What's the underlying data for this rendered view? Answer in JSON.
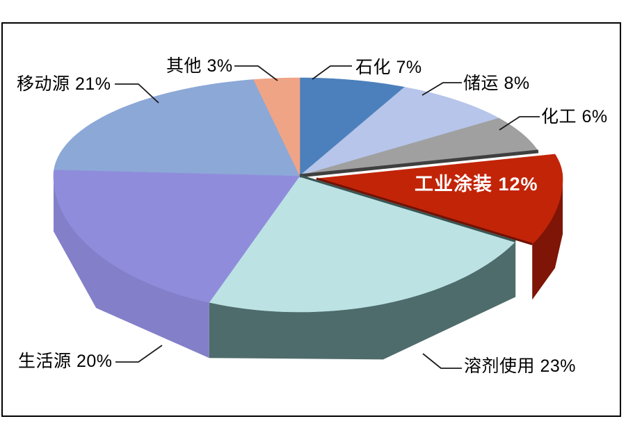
{
  "chart_data": {
    "type": "pie",
    "style": "3d-exploded-pie",
    "title": "",
    "unit": "%",
    "total": 100,
    "clockwise_from_top": true,
    "legend": "none",
    "background": "#FFFFFF",
    "frame_border_color": "#000000",
    "callout_line_color": "#1A1A1A",
    "label_text_color": "#000000",
    "highlight_label_color": "#FFFFFF",
    "slices": [
      {
        "id": "petrochemical",
        "label": "石化",
        "value": 7,
        "display": "石化 7%",
        "color": "#4C80BC"
      },
      {
        "id": "storage-transport",
        "label": "储运",
        "value": 8,
        "display": "储运 8%",
        "color": "#B6C5E9"
      },
      {
        "id": "chemical",
        "label": "化工",
        "value": 6,
        "display": "化工 6%",
        "color": "#A0A0A0",
        "cut_face_color": "#3F3F3F",
        "cut_face_edge": "end"
      },
      {
        "id": "industrial-coating",
        "label": "工业涂装",
        "value": 12,
        "display": "工业涂装 12%",
        "color": "#C22408",
        "side_color": "#7E1506",
        "cut_face_color": "#6E1205",
        "cut_face_edge": "end",
        "exploded": true,
        "label_inside": true
      },
      {
        "id": "solvent-use",
        "label": "溶剂使用",
        "value": 23,
        "display": "溶剂使用 23%",
        "color": "#BCE2E4",
        "side_color": "#4E6C6B",
        "cut_face_color": "#3A5553",
        "cut_face_edge": "start"
      },
      {
        "id": "domestic",
        "label": "生活源",
        "value": 20,
        "display": "生活源 20%",
        "color": "#8F8DDB",
        "side_color": "#837FC9"
      },
      {
        "id": "mobile",
        "label": "移动源",
        "value": 21,
        "display": "移动源 21%",
        "color": "#8CA8D7"
      },
      {
        "id": "other",
        "label": "其他",
        "value": 3,
        "display": "其他 3%",
        "color": "#F0A486"
      }
    ]
  }
}
